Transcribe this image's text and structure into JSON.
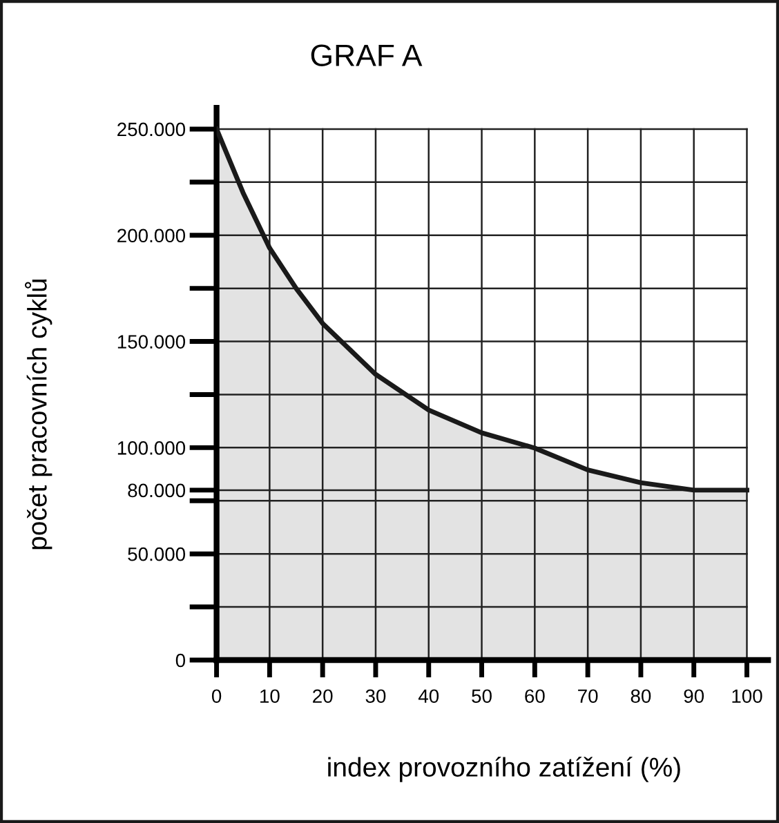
{
  "chart_data": {
    "type": "area",
    "title": "GRAF A",
    "xlabel": "index provozního zatížení (%)",
    "ylabel": "počet pracovních cyklů",
    "x": [
      0,
      5,
      10,
      15,
      20,
      30,
      40,
      50,
      60,
      70,
      80,
      90,
      100
    ],
    "series": [
      {
        "color": "#1a1a1a",
        "values": [
          250000,
          220000,
          194000,
          175000,
          158500,
          134500,
          117700,
          107000,
          99800,
          89500,
          83500,
          80000,
          80000
        ]
      }
    ],
    "xlim": [
      0,
      104
    ],
    "ylim": [
      0,
      260000
    ],
    "xticks": [
      0,
      10,
      20,
      30,
      40,
      50,
      60,
      70,
      80,
      90,
      100
    ],
    "yticks": [
      {
        "value": 0,
        "label": "0"
      },
      {
        "value": 25000,
        "label": null
      },
      {
        "value": 50000,
        "label": "50.000"
      },
      {
        "value": 75000,
        "label": null
      },
      {
        "value": 80000,
        "label": "80.000"
      },
      {
        "value": 100000,
        "label": "100.000"
      },
      {
        "value": 125000,
        "label": null
      },
      {
        "value": 150000,
        "label": "150.000"
      },
      {
        "value": 175000,
        "label": null
      },
      {
        "value": 200000,
        "label": "200.000"
      },
      {
        "value": 225000,
        "label": null
      },
      {
        "value": 250000,
        "label": "250.000"
      }
    ],
    "grid": true,
    "legend": false
  }
}
